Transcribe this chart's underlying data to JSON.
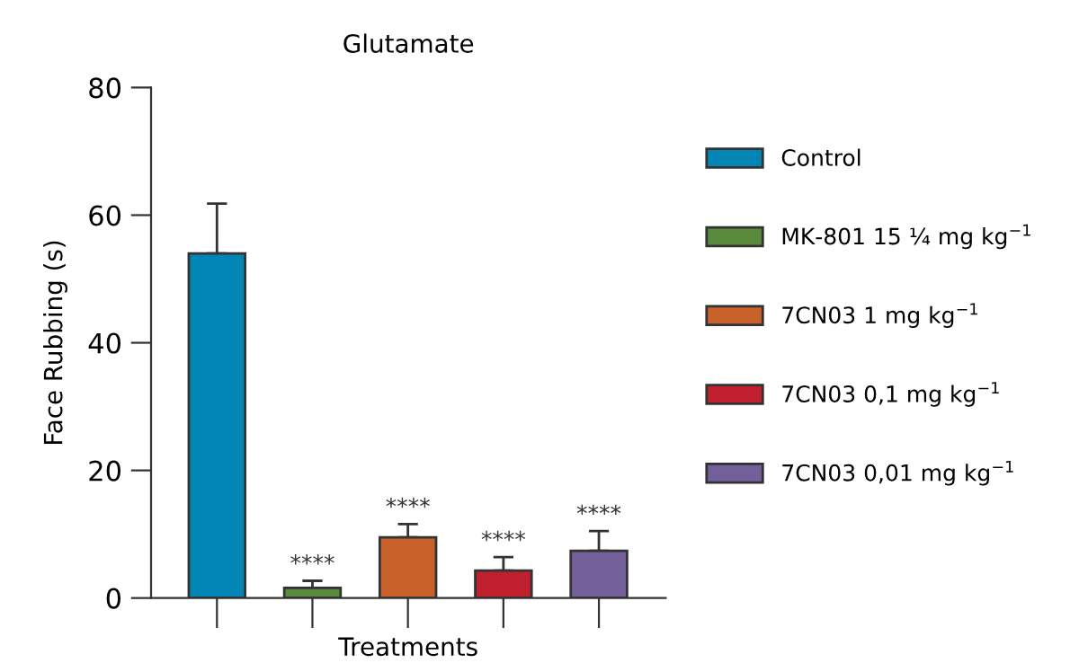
{
  "chart_data": {
    "type": "bar",
    "title": "Glutamate",
    "xlabel": "Treatments",
    "ylabel": "Face Rubbing (s)",
    "categories": [
      null,
      null,
      null,
      null,
      null
    ],
    "ylim": [
      0,
      80
    ],
    "yticks": [
      0,
      20,
      40,
      60,
      80
    ],
    "grid": false,
    "legend": "right",
    "series": [
      {
        "name": "Control",
        "color": "#0085b4",
        "values": [
          54,
          null,
          null,
          null,
          null
        ],
        "errors": [
          [
            54,
            61.8
          ],
          null,
          null,
          null,
          null
        ],
        "value_labels": [
          null,
          null,
          null,
          null,
          null
        ]
      },
      {
        "name": "MK-801 15 ¼ mg kg$^{−1}$",
        "color": "#5a8a3c",
        "values": [
          null,
          1.6,
          null,
          null,
          null
        ],
        "errors": [
          null,
          [
            1.6,
            2.7
          ],
          null,
          null,
          null
        ],
        "value_labels": [
          null,
          "****",
          null,
          null,
          null
        ]
      },
      {
        "name": "7CN03 1 mg kg$^{−1}$",
        "color": "#c8622a",
        "values": [
          null,
          null,
          9.5,
          null,
          null
        ],
        "errors": [
          null,
          null,
          [
            9.5,
            11.6
          ],
          null,
          null
        ],
        "value_labels": [
          null,
          null,
          "****",
          null,
          null
        ]
      },
      {
        "name": "7CN03 0,1 mg kg$^{−1}$",
        "color": "#c0202e",
        "values": [
          null,
          null,
          null,
          4.3,
          null
        ],
        "errors": [
          null,
          null,
          null,
          [
            4.3,
            6.4
          ],
          null
        ],
        "value_labels": [
          null,
          null,
          null,
          "****",
          null
        ]
      },
      {
        "name": "7CN03 0,01 mg kg$^{−1}$",
        "color": "#735f9a",
        "values": [
          null,
          null,
          null,
          null,
          7.4
        ],
        "errors": [
          null,
          null,
          null,
          null,
          [
            7.4,
            10.5
          ]
        ],
        "value_labels": [
          null,
          null,
          null,
          null,
          "****"
        ]
      }
    ]
  }
}
